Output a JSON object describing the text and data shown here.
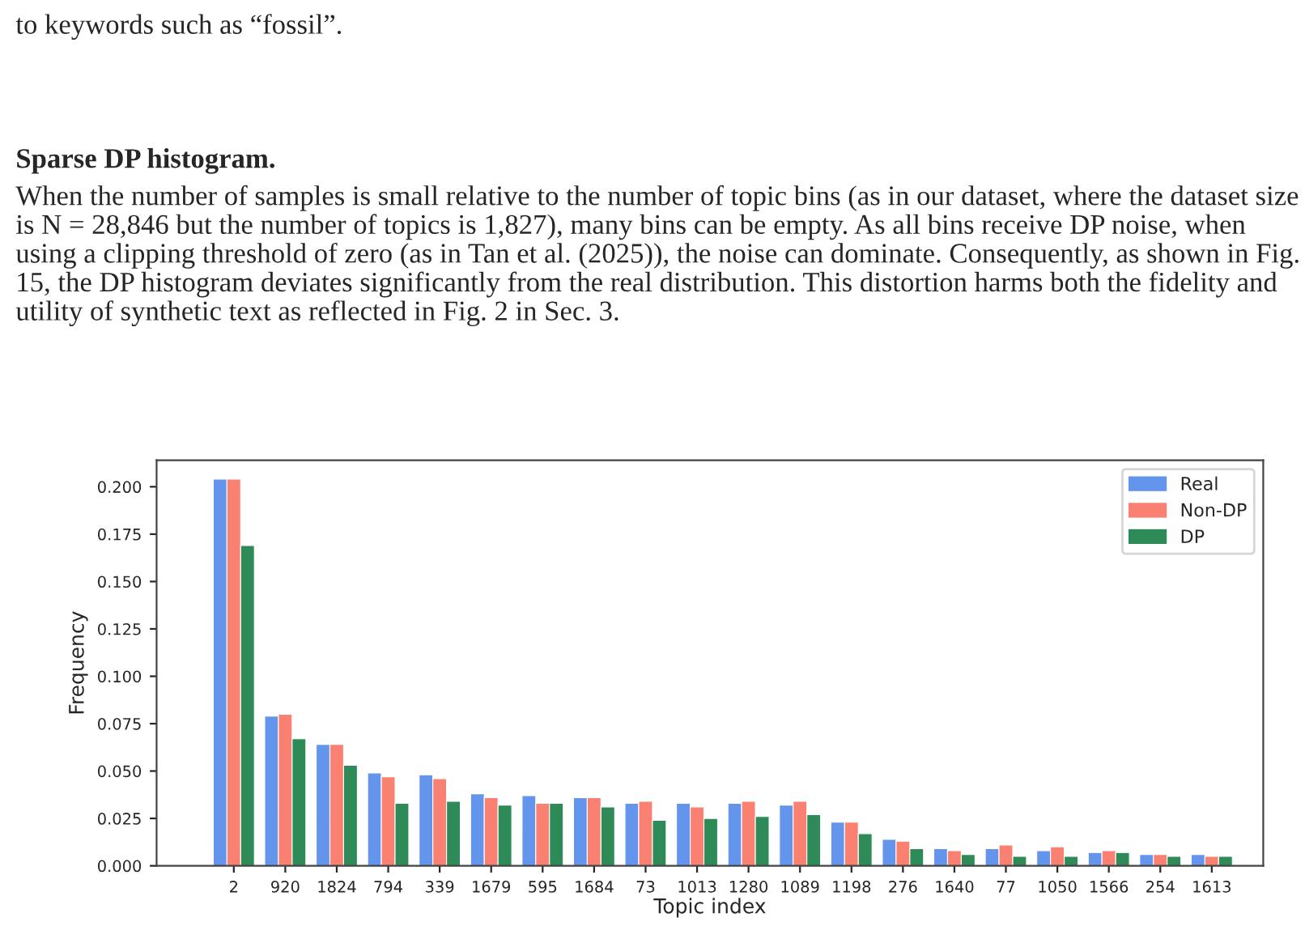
{
  "chart_data": {
    "type": "bar",
    "xlabel": "Topic index",
    "ylabel": "Frequency",
    "categories": [
      "2",
      "920",
      "1824",
      "794",
      "339",
      "1679",
      "595",
      "1684",
      "73",
      "1013",
      "1280",
      "1089",
      "1198",
      "276",
      "1640",
      "77",
      "1050",
      "1566",
      "254",
      "1613"
    ],
    "series": [
      {
        "name": "Real",
        "color": "#6495ed",
        "values": [
          0.204,
          0.079,
          0.064,
          0.049,
          0.048,
          0.038,
          0.037,
          0.036,
          0.033,
          0.033,
          0.033,
          0.032,
          0.023,
          0.014,
          0.009,
          0.009,
          0.008,
          0.007,
          0.006,
          0.006
        ]
      },
      {
        "name": "Non-DP",
        "color": "#fa8072",
        "values": [
          0.204,
          0.08,
          0.064,
          0.047,
          0.046,
          0.036,
          0.033,
          0.036,
          0.034,
          0.031,
          0.034,
          0.034,
          0.023,
          0.013,
          0.008,
          0.011,
          0.01,
          0.008,
          0.006,
          0.005
        ]
      },
      {
        "name": "DP",
        "color": "#2e8b57",
        "values": [
          0.169,
          0.067,
          0.053,
          0.033,
          0.034,
          0.032,
          0.033,
          0.031,
          0.024,
          0.025,
          0.026,
          0.027,
          0.017,
          0.009,
          0.006,
          0.005,
          0.005,
          0.007,
          0.005,
          0.005
        ]
      }
    ],
    "ylim": [
      0,
      0.214
    ],
    "yticks": [
      {
        "value": 0,
        "label": "0.000"
      },
      {
        "value": 0.025,
        "label": "0.025"
      },
      {
        "value": 0.05,
        "label": "0.050"
      },
      {
        "value": 0.075,
        "label": "0.075"
      },
      {
        "value": 0.1,
        "label": "0.100"
      },
      {
        "value": 0.125,
        "label": "0.125"
      },
      {
        "value": 0.15,
        "label": "0.150"
      },
      {
        "value": 0.175,
        "label": "0.175"
      },
      {
        "value": 0.2,
        "label": "0.200"
      }
    ],
    "legend": "top right",
    "grid": false,
    "annotations": [
      "to keywords such as “fossil”.",
      "Sparse DP histogram.",
      "When the number of samples is small relative to the number of topic bins (as in our dataset, where the dataset size is N = 28,846 but the number of topics is 1,827), many bins can be empty. As all bins receive DP noise, when using a clipping threshold of zero (as in Tan et al. (2025)), the noise can dominate. Consequently, as shown in Fig. 15, the DP histogram deviates significantly from the real distribution. This distortion harms both the fidelity and utility of synthetic text as reflected in Fig. 2 in Sec. 3."
    ]
  }
}
